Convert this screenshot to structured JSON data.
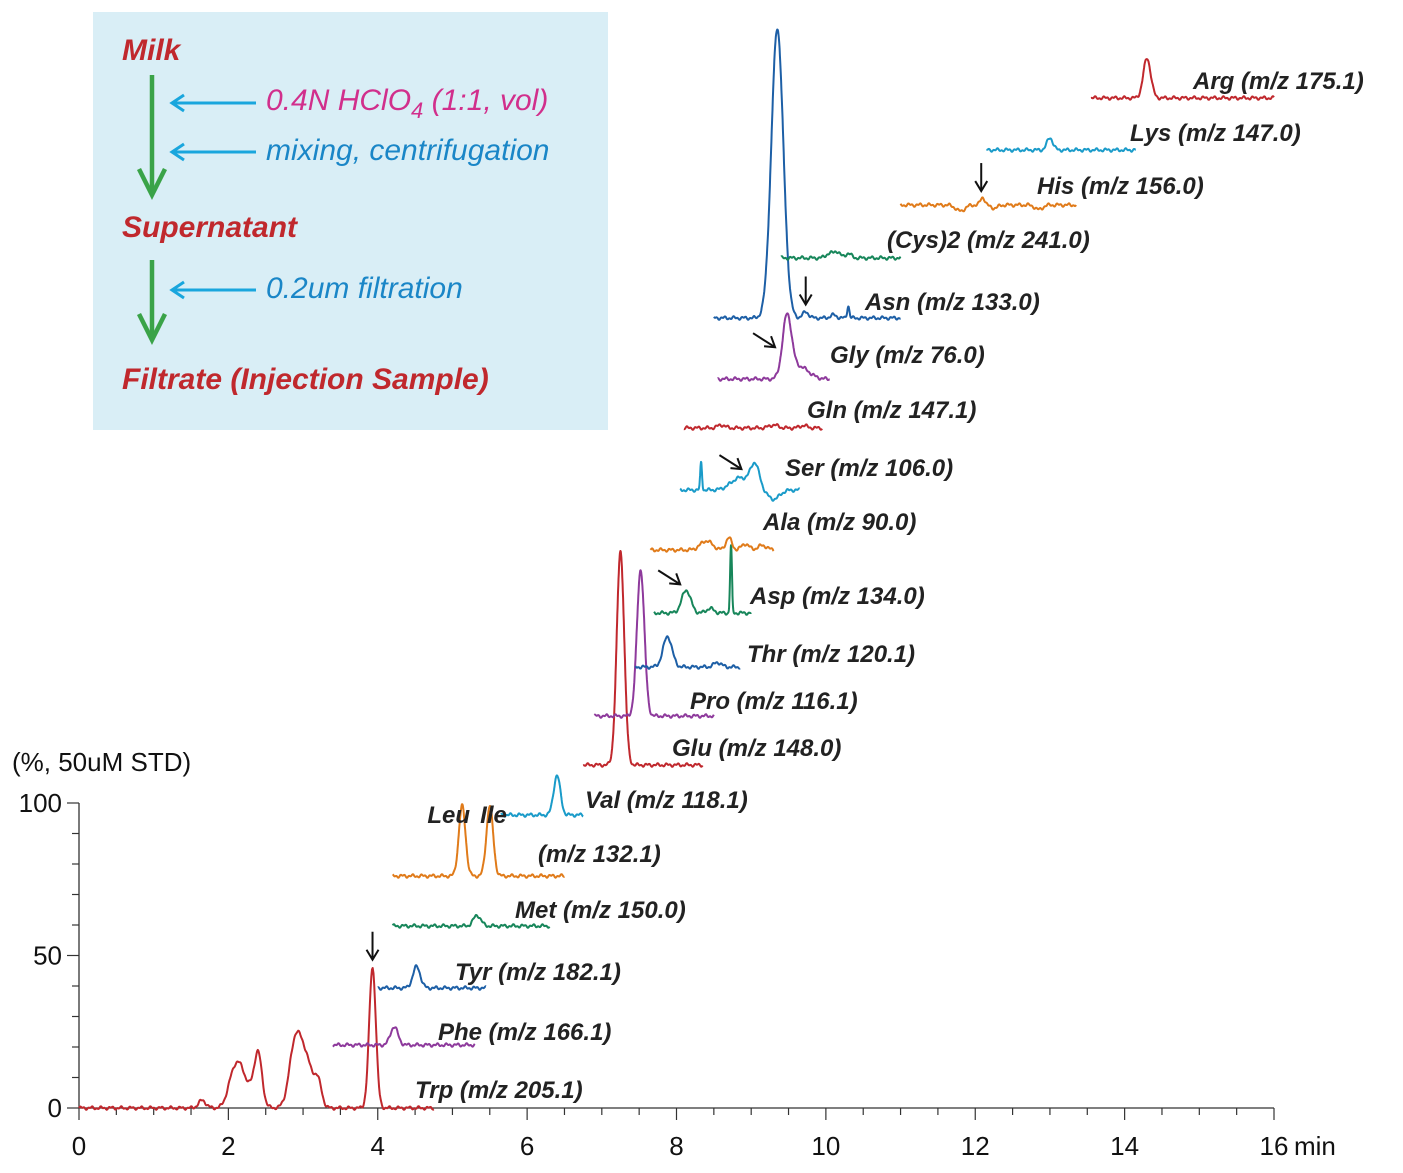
{
  "chart_data": {
    "type": "line",
    "title": "",
    "xlabel": "min",
    "ylabel": "(%, 50uM STD)",
    "xlim": [
      0,
      16
    ],
    "ylim": [
      0,
      100
    ],
    "x_ticks": [
      0,
      2,
      4,
      6,
      8,
      10,
      12,
      14,
      16
    ],
    "y_ticks": [
      0,
      50,
      100
    ],
    "grid": false,
    "series": [
      {
        "name": "Trp (m/z 205.1)",
        "color": "#c0282d",
        "range": [
          0,
          4.75
        ],
        "offset": [
          0,
          0
        ],
        "peaks": [
          [
            1.65,
            2.5,
            0.05
          ],
          [
            2.05,
            8,
            0.07
          ],
          [
            2.15,
            10,
            0.07
          ],
          [
            2.4,
            15,
            0.05
          ],
          [
            2.3,
            6,
            0.1
          ],
          [
            2.9,
            22,
            0.08
          ],
          [
            3.05,
            14,
            0.08
          ],
          [
            3.2,
            8,
            0.05
          ],
          [
            3.93,
            46,
            0.045
          ]
        ],
        "arrows": [
          3.93
        ]
      },
      {
        "name": "Phe (m/z 166.1)",
        "color": "#8e3a9c",
        "range": [
          3.4,
          5.3
        ],
        "offset": [
          0,
          0
        ],
        "peaks": [
          [
            4.22,
            6,
            0.05
          ]
        ]
      },
      {
        "name": "Tyr (m/z 182.1)",
        "color": "#1d5fa6",
        "range": [
          4.0,
          5.45
        ],
        "offset": [
          0,
          0
        ],
        "peaks": [
          [
            4.52,
            7,
            0.05
          ]
        ]
      },
      {
        "name": "Met (m/z 150.0)",
        "color": "#17865a",
        "range": [
          4.2,
          6.3
        ],
        "offset": [
          0,
          0
        ],
        "peaks": [
          [
            5.33,
            3.5,
            0.05
          ]
        ]
      },
      {
        "name": "(m/z 132.1)",
        "color": "#e07b1a",
        "range": [
          4.2,
          6.5
        ],
        "offset": [
          0,
          0
        ],
        "peaks": [
          [
            5.13,
            23,
            0.045
          ],
          [
            5.5,
            23,
            0.045
          ]
        ],
        "peak_labels": [
          {
            "x": 4.95,
            "text": "Leu"
          },
          {
            "x": 5.55,
            "text": "Ile"
          }
        ]
      },
      {
        "name": "Val (m/z 118.1)",
        "color": "#1a9bc9",
        "range": [
          5.65,
          6.75
        ],
        "offset": [
          0,
          0
        ],
        "peaks": [
          [
            6.4,
            13,
            0.045
          ]
        ]
      },
      {
        "name": "Glu (m/z 148.0)",
        "color": "#c0282d",
        "range": [
          6.75,
          8.35
        ],
        "offset": [
          0,
          0
        ],
        "peaks": [
          [
            7.25,
            70,
            0.05
          ]
        ]
      },
      {
        "name": "Pro (m/z 116.1)",
        "color": "#8e3a9c",
        "range": [
          6.9,
          8.5
        ],
        "offset": [
          0,
          0
        ],
        "peaks": [
          [
            7.52,
            48,
            0.05
          ]
        ]
      },
      {
        "name": "Thr (m/z 120.1)",
        "color": "#1d5fa6",
        "range": [
          7.45,
          8.85
        ],
        "offset": [
          0,
          0
        ],
        "peaks": [
          [
            7.88,
            10,
            0.06
          ],
          [
            8.55,
            1.5,
            0.05
          ]
        ]
      },
      {
        "name": "Asp (m/z 134.0)",
        "color": "#17865a",
        "range": [
          7.7,
          9.0
        ],
        "offset": [
          0,
          0
        ],
        "peaks": [
          [
            8.13,
            7.5,
            0.06
          ],
          [
            8.45,
            1.5,
            0.05
          ],
          [
            8.73,
            22,
            0.012
          ]
        ],
        "arrows": [
          8.13
        ]
      },
      {
        "name": "Ala (m/z 90.0)",
        "color": "#e07b1a",
        "range": [
          7.65,
          9.3
        ],
        "offset": [
          0,
          0
        ],
        "peaks": [
          [
            8.4,
            3,
            0.08
          ],
          [
            8.7,
            4,
            0.04
          ],
          [
            8.92,
            2,
            0.05
          ],
          [
            9.15,
            1.5,
            0.06
          ]
        ]
      },
      {
        "name": "Ser (m/z 106.0)",
        "color": "#1a9bc9",
        "range": [
          8.05,
          9.65
        ],
        "offset": [
          0,
          0
        ],
        "peaks": [
          [
            8.33,
            9,
            0.012
          ],
          [
            8.85,
            4,
            0.12
          ],
          [
            9.05,
            8,
            0.06
          ],
          [
            9.3,
            -3,
            0.08
          ]
        ],
        "arrows": [
          8.95
        ]
      },
      {
        "name": "Gln (m/z 147.1)",
        "color": "#c0282d",
        "range": [
          8.1,
          9.95
        ],
        "offset": [
          0,
          0
        ],
        "peaks": [
          [
            8.6,
            1,
            0.05
          ],
          [
            9.3,
            1,
            0.06
          ],
          [
            9.7,
            0.8,
            0.05
          ]
        ]
      },
      {
        "name": "Gly (m/z 76.0)",
        "color": "#8e3a9c",
        "range": [
          8.55,
          10.05
        ],
        "offset": [
          0,
          0
        ],
        "peaks": [
          [
            9.48,
            20,
            0.06
          ],
          [
            9.65,
            4,
            0.12
          ]
        ],
        "arrows": [
          9.4
        ]
      },
      {
        "name": "Asn (m/z 133.0)",
        "color": "#1d5fa6",
        "range": [
          8.5,
          11.0
        ],
        "offset": [
          0,
          0
        ],
        "peaks": [
          [
            9.35,
            95,
            0.08
          ],
          [
            9.73,
            2,
            0.04
          ],
          [
            10.1,
            1,
            0.04
          ],
          [
            10.3,
            4,
            0.015
          ]
        ],
        "arrows": [
          9.73
        ]
      },
      {
        "name": "(Cys)2 (m/z 241.0)",
        "color": "#17865a",
        "range": [
          9.4,
          11.0
        ],
        "offset": [
          0,
          0
        ],
        "peaks": [
          [
            10.05,
            1.5,
            0.05
          ],
          [
            10.15,
            2,
            0.04
          ],
          [
            10.3,
            1.5,
            0.04
          ]
        ]
      },
      {
        "name": "His (m/z 156.0)",
        "color": "#e07b1a",
        "range": [
          11.0,
          13.35
        ],
        "offset": [
          0,
          0
        ],
        "peaks": [
          [
            11.8,
            -2,
            0.06
          ],
          [
            12.1,
            2.5,
            0.03
          ],
          [
            12.25,
            -1,
            0.05
          ],
          [
            12.85,
            -1.5,
            0.05
          ]
        ],
        "arrows": [
          12.08
        ]
      },
      {
        "name": "Lys (m/z 147.0)",
        "color": "#1a9bc9",
        "range": [
          12.15,
          14.15
        ],
        "offset": [
          0,
          0
        ],
        "peaks": [
          [
            13.0,
            4,
            0.04
          ]
        ]
      },
      {
        "name": "Arg (m/z 175.1)",
        "color": "#c0282d",
        "range": [
          13.55,
          16.0
        ],
        "offset": [
          0,
          0
        ],
        "peaks": [
          [
            14.3,
            13,
            0.05
          ]
        ]
      }
    ]
  },
  "inset": {
    "background": "#d9eef6",
    "heading_color": "#c0282d",
    "arrow_color": "#3aa348",
    "pointer_color": "#19a6dd",
    "items": [
      {
        "text": "Milk",
        "color": "#c0282d"
      },
      {
        "text": "0.4N HClO",
        "sub": "4",
        "suffix": " (1:1, vol)",
        "color": "#d12f8c"
      },
      {
        "text": "mixing, centrifugation",
        "color": "#1a86c7"
      },
      {
        "text": "Supernatant",
        "color": "#c0282d"
      },
      {
        "text": "0.2um filtration",
        "color": "#1a86c7"
      },
      {
        "text": "Filtrate (Injection Sample)",
        "color": "#c0282d"
      }
    ]
  }
}
